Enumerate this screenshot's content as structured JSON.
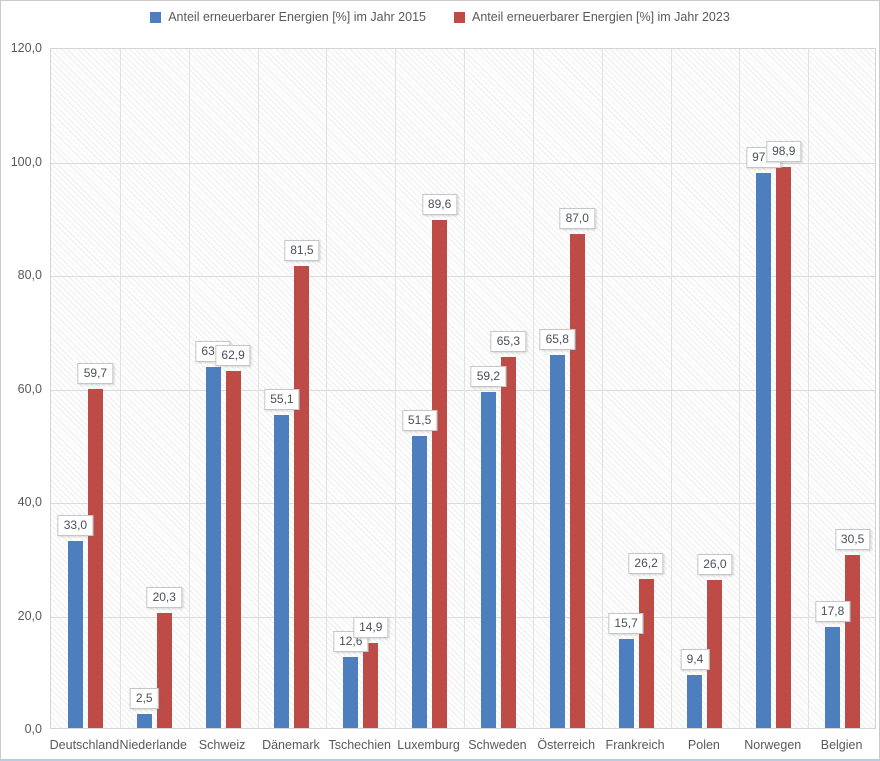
{
  "chart_data": {
    "type": "bar",
    "title": "",
    "xlabel": "",
    "ylabel": "",
    "ylim": [
      0,
      120
    ],
    "ytick_step": 20,
    "grid": true,
    "legend_position": "top",
    "value_labels": true,
    "decimal_separator": ",",
    "categories": [
      "Deutschland",
      "Niederlande",
      "Schweiz",
      "Dänemark",
      "Tschechien",
      "Luxemburg",
      "Schweden",
      "Österreich",
      "Frankreich",
      "Polen",
      "Norwegen",
      "Belgien"
    ],
    "series": [
      {
        "name": "Anteil erneuerbarer Energien [%] im Jahr 2015",
        "color": "#4d7ebd",
        "values": [
          33.0,
          2.5,
          63.6,
          55.1,
          12.6,
          51.5,
          59.2,
          65.8,
          15.7,
          9.4,
          97.8,
          17.8
        ]
      },
      {
        "name": "Anteil erneuerbarer Energien [%] im Jahr 2023",
        "color": "#bf4b47",
        "values": [
          59.7,
          20.3,
          62.9,
          81.5,
          14.9,
          89.6,
          65.3,
          87.0,
          26.2,
          26.0,
          98.9,
          30.5
        ]
      }
    ],
    "y_axis_tick_labels": [
      "120,0",
      "100,0",
      "80,0",
      "60,0",
      "40,0",
      "20,0",
      "0,0"
    ]
  }
}
